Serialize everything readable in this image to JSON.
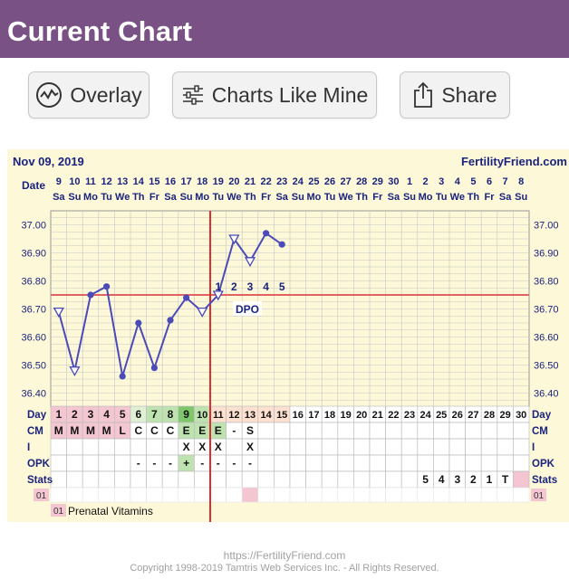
{
  "header": {
    "title": "Current Chart"
  },
  "toolbar": {
    "overlay_label": "Overlay",
    "charts_like_mine_label": "Charts Like Mine",
    "share_label": "Share"
  },
  "chart_header": {
    "date": "Nov 09, 2019",
    "site": "FertilityFriend.com"
  },
  "date_row": {
    "label": "Date",
    "dates": [
      "9",
      "10",
      "11",
      "12",
      "13",
      "14",
      "15",
      "16",
      "17",
      "18",
      "19",
      "20",
      "21",
      "22",
      "23",
      "24",
      "25",
      "26",
      "27",
      "28",
      "29",
      "30",
      "1",
      "2",
      "3",
      "4",
      "5",
      "6",
      "7",
      "8"
    ],
    "weekdays": [
      "Sa",
      "Su",
      "Mo",
      "Tu",
      "We",
      "Th",
      "Fr",
      "Sa",
      "Su",
      "Mo",
      "Tu",
      "We",
      "Th",
      "Fr",
      "Sa",
      "Su",
      "Mo",
      "Tu",
      "We",
      "Th",
      "Fr",
      "Sa",
      "Su",
      "Mo",
      "Tu",
      "We",
      "Th",
      "Fr",
      "Sa",
      "Su"
    ]
  },
  "temp_axis": {
    "labels": [
      "37.00",
      "36.90",
      "36.80",
      "36.70",
      "36.60",
      "36.50",
      "36.40"
    ],
    "min": 36.35,
    "max": 37.05,
    "step": 0.025
  },
  "chart_data": {
    "type": "line",
    "x": [
      1,
      2,
      3,
      4,
      5,
      6,
      7,
      8,
      9,
      10,
      11,
      12,
      13,
      14,
      15
    ],
    "y": [
      36.69,
      36.48,
      36.75,
      36.78,
      36.46,
      36.65,
      36.49,
      36.66,
      36.74,
      36.69,
      36.75,
      36.95,
      36.87,
      36.97,
      36.93
    ],
    "open_markers": [
      1,
      2,
      10,
      11,
      12,
      13
    ],
    "coverline": 36.75,
    "ovulation_day": 10,
    "dpo_labels": [
      "1",
      "2",
      "3",
      "4",
      "5"
    ],
    "dpo_text": "DPO",
    "ylim": [
      36.35,
      37.05
    ],
    "grid": true
  },
  "rows": {
    "day": {
      "label": "Day",
      "values": [
        "1",
        "2",
        "3",
        "4",
        "5",
        "6",
        "7",
        "8",
        "9",
        "10",
        "11",
        "12",
        "13",
        "14",
        "15",
        "16",
        "17",
        "18",
        "19",
        "20",
        "21",
        "22",
        "23",
        "24",
        "25",
        "26",
        "27",
        "28",
        "29",
        "30"
      ]
    },
    "cm": {
      "label": "CM",
      "values": [
        "M",
        "M",
        "M",
        "M",
        "L",
        "C",
        "C",
        "C",
        "E",
        "E",
        "E",
        "-",
        "S",
        "",
        "",
        "",
        "",
        "",
        "",
        "",
        "",
        "",
        "",
        "",
        "",
        "",
        "",
        "",
        "",
        ""
      ]
    },
    "i": {
      "label": "I",
      "values": [
        "",
        "",
        "",
        "",
        "",
        "",
        "",
        "",
        "X",
        "X",
        "X",
        "",
        "X",
        "",
        "",
        "",
        "",
        "",
        "",
        "",
        "",
        "",
        "",
        "",
        "",
        "",
        "",
        "",
        "",
        ""
      ]
    },
    "opk": {
      "label": "OPK",
      "values": [
        "",
        "",
        "",
        "",
        "",
        "-",
        "-",
        "-",
        "+",
        "-",
        "-",
        "-",
        "-",
        "",
        "",
        "",
        "",
        "",
        "",
        "",
        "",
        "",
        "",
        "",
        "",
        "",
        "",
        "",
        "",
        ""
      ]
    },
    "stats": {
      "label": "Stats",
      "values": [
        "",
        "",
        "",
        "",
        "",
        "",
        "",
        "",
        "",
        "",
        "",
        "",
        "",
        "",
        "",
        "",
        "",
        "",
        "",
        "",
        "",
        "",
        "",
        "5",
        "4",
        "3",
        "2",
        "1",
        "T",
        ""
      ]
    }
  },
  "medication": {
    "marker": "01",
    "legend_text": "Prenatal Vitamins"
  },
  "colors": {
    "header_bg": "#7a5185",
    "chart_bg": "#fdf8d8",
    "grid": "#c6c6c6",
    "line": "#4a4ab8",
    "coverline": "#e06262",
    "ovulation": "#d83030",
    "menses_cell": "#f4c6d2",
    "fertile_cell": "#bfe3b0",
    "fertile_dark": "#7fc76a",
    "lp_cell": "#fde0cf"
  },
  "footer": {
    "url": "https://FertilityFriend.com",
    "copyright": "Copyright 1998-2019 Tamtris Web Services Inc. - All Rights Reserved."
  }
}
